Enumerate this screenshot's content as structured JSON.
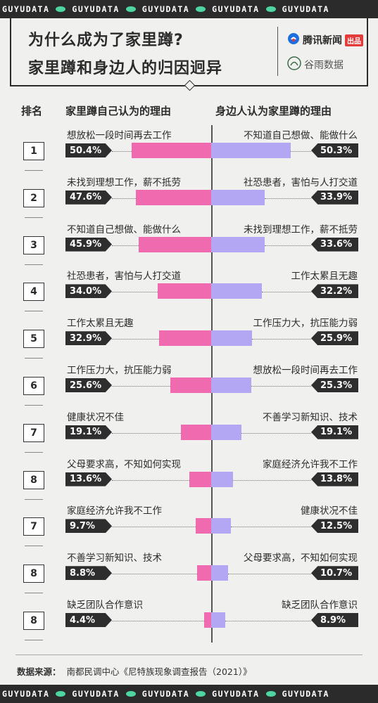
{
  "ticker": [
    "GUYUDATA",
    "GUYUDATA",
    "GUYUDATA",
    "GUYUDATA",
    "GUYUDATA"
  ],
  "title": {
    "line1": "为什么成为了家里蹲?",
    "line2": "家里蹲和身边人的归因迥异"
  },
  "brands": {
    "tencent": "腾讯新闻",
    "badge": "出品",
    "guyu": "谷雨数据"
  },
  "headers": {
    "rank": "排名",
    "left": "家里蹲自己认为的理由",
    "right": "身边人认为家里蹲的理由"
  },
  "chart_data": {
    "type": "bar",
    "series": [
      {
        "name": "家里蹲自己认为的理由"
      },
      {
        "name": "身边人认为家里蹲的理由"
      }
    ],
    "rows": [
      {
        "rank": "1",
        "left_label": "想放松一段时间再去工作",
        "left_value": 50.4,
        "left_text": "50.4%",
        "right_label": "不知道自己想做、能做什么",
        "right_value": 50.3,
        "right_text": "50.3%"
      },
      {
        "rank": "2",
        "left_label": "未找到理想工作，薪不抵劳",
        "left_value": 47.6,
        "left_text": "47.6%",
        "right_label": "社恐患者，害怕与人打交道",
        "right_value": 33.9,
        "right_text": "33.9%"
      },
      {
        "rank": "3",
        "left_label": "不知道自己想做、能做什么",
        "left_value": 45.9,
        "left_text": "45.9%",
        "right_label": "未找到理想工作，薪不抵劳",
        "right_value": 33.6,
        "right_text": "33.6%"
      },
      {
        "rank": "4",
        "left_label": "社恐患者，害怕与人打交道",
        "left_value": 34.0,
        "left_text": "34.0%",
        "right_label": "工作太累且无趣",
        "right_value": 32.2,
        "right_text": "32.2%"
      },
      {
        "rank": "5",
        "left_label": "工作太累且无趣",
        "left_value": 32.9,
        "left_text": "32.9%",
        "right_label": "工作压力大，抗压能力弱",
        "right_value": 25.9,
        "right_text": "25.9%"
      },
      {
        "rank": "6",
        "left_label": "工作压力大，抗压能力弱",
        "left_value": 25.6,
        "left_text": "25.6%",
        "right_label": "想放松一段时间再去工作",
        "right_value": 25.3,
        "right_text": "25.3%"
      },
      {
        "rank": "7",
        "left_label": "健康状况不佳",
        "left_value": 19.1,
        "left_text": "19.1%",
        "right_label": "不善学习新知识、技术",
        "right_value": 19.1,
        "right_text": "19.1%"
      },
      {
        "rank": "8",
        "left_label": "父母要求高，不知如何实现",
        "left_value": 13.6,
        "left_text": "13.6%",
        "right_label": "家庭经济允许我不工作",
        "right_value": 13.8,
        "right_text": "13.8%"
      },
      {
        "rank": "7",
        "left_label": "家庭经济允许我不工作",
        "left_value": 9.7,
        "left_text": "9.7%",
        "right_label": "健康状况不佳",
        "right_value": 12.5,
        "right_text": "12.5%"
      },
      {
        "rank": "8",
        "left_label": "不善学习新知识、技术",
        "left_value": 8.8,
        "left_text": "8.8%",
        "right_label": "父母要求高，不知如何实现",
        "right_value": 10.7,
        "right_text": "10.7%"
      },
      {
        "rank": "8",
        "left_label": "缺乏团队合作意识",
        "left_value": 4.4,
        "left_text": "4.4%",
        "right_label": "缺乏团队合作意识",
        "right_value": 8.9,
        "right_text": "8.9%"
      }
    ],
    "colors": {
      "left": "#f06ab0",
      "right": "#b3a6f2",
      "pill": "#2e2e2e"
    }
  },
  "source": {
    "label": "数据来源：",
    "text": "南都民调中心《尼特族现象调查报告（2021）》"
  }
}
